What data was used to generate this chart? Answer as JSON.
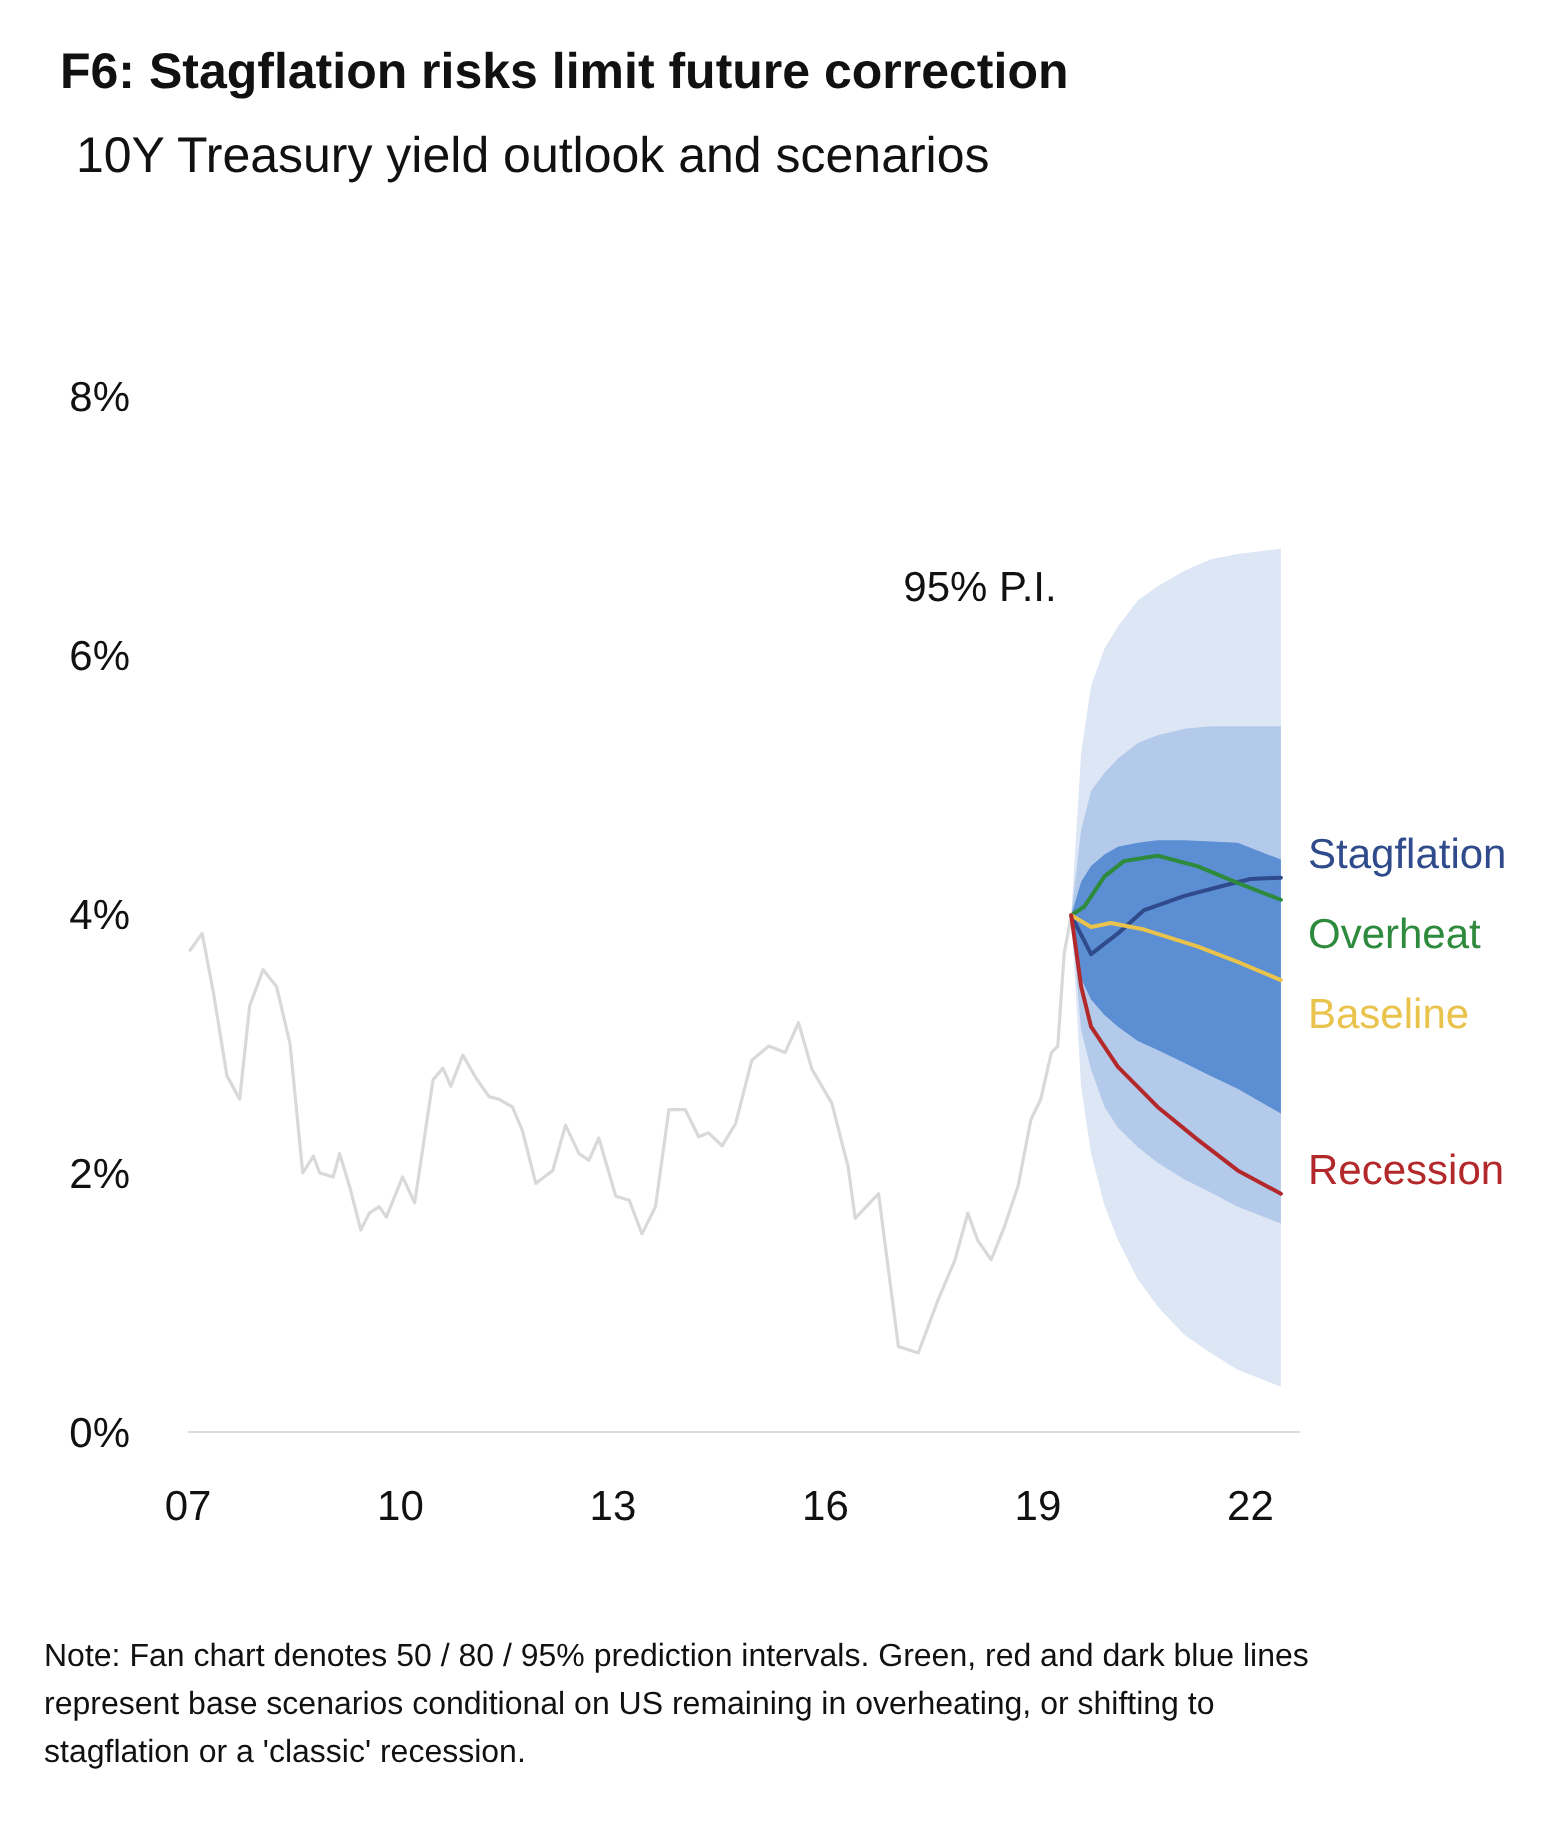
{
  "chart_data": {
    "type": "line",
    "title": "F6: Stagflation risks limit future correction",
    "subtitle": "10Y Treasury yield outlook and scenarios",
    "xlim": [
      2007,
      2022.7
    ],
    "xticks": [
      {
        "value": 2007,
        "label": "07"
      },
      {
        "value": 2010,
        "label": "10"
      },
      {
        "value": 2013,
        "label": "13"
      },
      {
        "value": 2016,
        "label": "16"
      },
      {
        "value": 2019,
        "label": "19"
      },
      {
        "value": 2022,
        "label": "22"
      }
    ],
    "ylim": [
      0,
      8
    ],
    "yticks": [
      {
        "value": 0,
        "label": "0%"
      },
      {
        "value": 2,
        "label": "2%"
      },
      {
        "value": 4,
        "label": "4%"
      },
      {
        "value": 6,
        "label": "6%"
      },
      {
        "value": 8,
        "label": "8%"
      }
    ],
    "grid": false,
    "legend": "right",
    "series": [
      {
        "color": "#dce6f5",
        "x": [
          2019.47,
          2019.61,
          2019.75,
          2019.94,
          2020.13,
          2020.41,
          2020.69,
          2021.07,
          2021.44,
          2021.82,
          2022.43
        ],
        "values": [
          null,
          null,
          null,
          null,
          null,
          null,
          null,
          null,
          null,
          null,
          null
        ],
        "lower": [
          3.99,
          2.67,
          2.15,
          1.75,
          1.48,
          1.18,
          0.97,
          0.75,
          0.61,
          0.48,
          0.35
        ],
        "upper": [
          3.99,
          5.24,
          5.76,
          6.05,
          6.22,
          6.42,
          6.53,
          6.65,
          6.74,
          6.78,
          6.82
        ]
      },
      {
        "color": "#b4caea",
        "x": [
          2019.47,
          2019.61,
          2019.75,
          2019.94,
          2020.13,
          2020.41,
          2020.69,
          2021.07,
          2021.44,
          2021.82,
          2022.43
        ],
        "values": [
          null,
          null,
          null,
          null,
          null,
          null,
          null,
          null,
          null,
          null,
          null
        ],
        "lower": [
          3.99,
          3.1,
          2.8,
          2.51,
          2.35,
          2.2,
          2.08,
          1.95,
          1.85,
          1.74,
          1.61
        ],
        "upper": [
          3.99,
          4.65,
          4.95,
          5.09,
          5.2,
          5.32,
          5.38,
          5.43,
          5.45,
          5.45,
          5.45
        ]
      },
      {
        "color": "#5b8ed3",
        "x": [
          2019.47,
          2019.61,
          2019.75,
          2019.94,
          2020.13,
          2020.41,
          2020.69,
          2021.07,
          2021.44,
          2021.82,
          2022.43
        ],
        "values": [
          null,
          null,
          null,
          null,
          null,
          null,
          null,
          null,
          null,
          null,
          null
        ],
        "lower": [
          3.99,
          3.5,
          3.34,
          3.22,
          3.13,
          3.02,
          2.95,
          2.85,
          2.75,
          2.65,
          2.46
        ],
        "upper": [
          3.99,
          4.25,
          4.37,
          4.46,
          4.52,
          4.55,
          4.57,
          4.57,
          4.56,
          4.55,
          4.42
        ]
      },
      {
        "color": "#d9d9d9",
        "x": [
          2007.03,
          2007.2,
          2007.36,
          2007.55,
          2007.73,
          2007.87,
          2008.06,
          2008.25,
          2008.44,
          2008.62,
          2008.77,
          2008.86,
          2009.05,
          2009.14,
          2009.28,
          2009.44,
          2009.56,
          2009.7,
          2009.8,
          2010.03,
          2010.2,
          2010.46,
          2010.6,
          2010.71,
          2010.88,
          2011.07,
          2011.25,
          2011.39,
          2011.58,
          2011.72,
          2011.91,
          2012.15,
          2012.33,
          2012.52,
          2012.66,
          2012.8,
          2013.04,
          2013.23,
          2013.41,
          2013.6,
          2013.79,
          2014.02,
          2014.21,
          2014.35,
          2014.54,
          2014.73,
          2014.96,
          2015.2,
          2015.43,
          2015.62,
          2015.81,
          2016.09,
          2016.32,
          2016.42,
          2016.75,
          2017.03,
          2017.31,
          2017.59,
          2017.83,
          2018.01,
          2018.15,
          2018.34,
          2018.53,
          2018.72,
          2018.9,
          2019.04,
          2019.19,
          2019.28,
          2019.37,
          2019.47
        ],
        "values": [
          3.72,
          3.85,
          3.39,
          2.75,
          2.57,
          3.29,
          3.57,
          3.44,
          3.0,
          2.0,
          2.13,
          2.0,
          1.97,
          2.15,
          1.9,
          1.56,
          1.69,
          1.74,
          1.66,
          1.97,
          1.77,
          2.72,
          2.81,
          2.67,
          2.91,
          2.73,
          2.59,
          2.57,
          2.51,
          2.33,
          1.92,
          2.02,
          2.37,
          2.15,
          2.1,
          2.27,
          1.82,
          1.79,
          1.53,
          1.74,
          2.49,
          2.49,
          2.28,
          2.31,
          2.21,
          2.38,
          2.87,
          2.98,
          2.93,
          3.16,
          2.8,
          2.54,
          2.05,
          1.65,
          1.84,
          0.66,
          0.61,
          1.02,
          1.33,
          1.69,
          1.48,
          1.33,
          1.59,
          1.9,
          2.41,
          2.57,
          2.93,
          2.98,
          3.69,
          3.99
        ]
      },
      {
        "name": "Stagflation",
        "color": "#2f4b8c",
        "x": [
          2019.47,
          2019.75,
          2020.13,
          2020.5,
          2021.07,
          2021.63,
          2022.0,
          2022.43
        ],
        "values": [
          3.99,
          3.69,
          3.85,
          4.03,
          4.14,
          4.22,
          4.27,
          4.28
        ]
      },
      {
        "name": "Overheat",
        "color": "#2e8a3c",
        "x": [
          2019.47,
          2019.66,
          2019.94,
          2020.22,
          2020.69,
          2021.25,
          2021.82,
          2022.43
        ],
        "values": [
          3.99,
          4.06,
          4.29,
          4.41,
          4.45,
          4.37,
          4.24,
          4.11
        ]
      },
      {
        "name": "Baseline",
        "color": "#e9c34c",
        "x": [
          2019.47,
          2019.75,
          2020.03,
          2020.5,
          2021.25,
          2021.82,
          2022.43
        ],
        "values": [
          3.99,
          3.9,
          3.93,
          3.88,
          3.75,
          3.63,
          3.49
        ]
      },
      {
        "name": "Recession",
        "color": "#b3292b",
        "x": [
          2019.47,
          2019.61,
          2019.75,
          2020.13,
          2020.69,
          2021.25,
          2021.82,
          2022.43
        ],
        "values": [
          3.99,
          3.44,
          3.13,
          2.82,
          2.51,
          2.26,
          2.02,
          1.84
        ]
      }
    ],
    "annotations": [
      "95% P.I.",
      "Note: Fan chart denotes 50 / 80 / 95% prediction intervals. Green, red and dark blue lines represent base scenarios conditional on US remaining in overheating, or shifting to stagflation or a 'classic' recession."
    ]
  }
}
